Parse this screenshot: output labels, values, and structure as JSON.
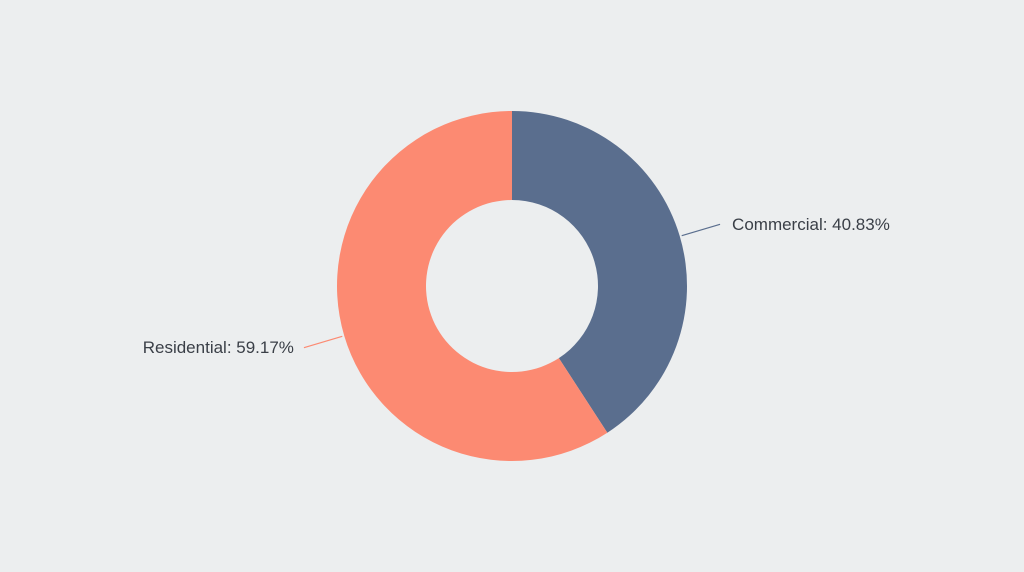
{
  "chart_data": {
    "type": "donut",
    "values": [
      40.83,
      59.17
    ],
    "value_labels": [
      "Commercial: 40.83%",
      "Residential: 59.17%"
    ],
    "colors": [
      "#5a6e8e",
      "#fc8a72"
    ],
    "start_angle": 0,
    "direction": "clockwise"
  }
}
